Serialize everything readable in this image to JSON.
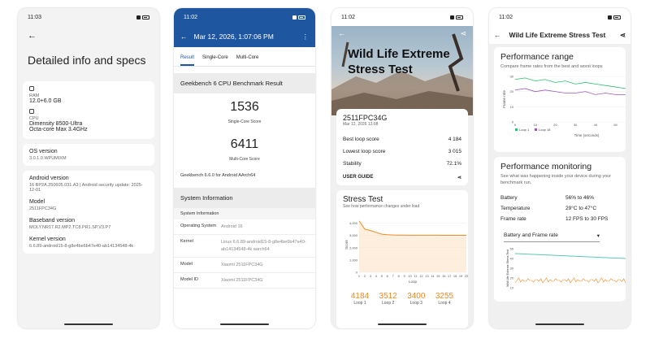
{
  "time": "11:02",
  "time_p1": "11:03",
  "p1": {
    "title": "Detailed info and specs",
    "ram_label": "RAM",
    "ram_value": "12.0+6.0 GB",
    "cpu_label": "CPU",
    "cpu_name": "Dimensity 8500-Ultra",
    "cpu_detail": "Octa-core Max 3.4GHz",
    "os_label": "OS version",
    "os_value": "3.0.1.0.WPUMIXM",
    "android_label": "Android version",
    "android_value": "16 BP2A.250605.031.A3 | Android security update: 2025-12-01",
    "model_label": "Model",
    "model_value": "2511FPC34G",
    "baseband_label": "Baseband version",
    "baseband_value": "MOLY.NR17.R2.MP2.TC8.PR1.SP.V3.P7",
    "kernel_label": "Kernel version",
    "kernel_value": "6.6.89-android15-8-g8e4be6b47e40-ab14134548-4k"
  },
  "p2": {
    "date": "Mar 12, 2026, 1:07:06 PM",
    "tabs": [
      "Result",
      "Single-Core",
      "Multi-Core"
    ],
    "section1": "Geekbench 6 CPU Benchmark Result",
    "single_score": "1536",
    "single_label": "Single-Core Score",
    "multi_score": "6411",
    "multi_label": "Multi-Core Score",
    "footer": "Geekbench 6.6.0 for Android AArch64",
    "section2": "System Information",
    "sub_header": "System Information",
    "rows": [
      {
        "k": "Operating System",
        "v": "Android 16"
      },
      {
        "k": "Kernel",
        "v": "Linux 6.6.89-android15-8-g8e4be6b47e40-ab14134548-4k aarch64"
      },
      {
        "k": "Model",
        "v": "Xiaomi 2511FPC34G"
      },
      {
        "k": "Model ID",
        "v": "Xiaomi 2511FPC34G"
      }
    ]
  },
  "p3": {
    "hero_title": "Wild Life Extreme Stress Test",
    "device": "2511FPC34G",
    "date": "Mar 12, 2026 12:08",
    "best_label": "Best loop score",
    "best_value": "4 184",
    "lowest_label": "Lowest loop score",
    "lowest_value": "3 015",
    "stability_label": "Stability",
    "stability_value": "72.1%",
    "user_guide": "USER GUIDE",
    "stress_title": "Stress Test",
    "stress_sub": "See how performance changes under load",
    "y_label": "Score",
    "x_label": "Loop",
    "y_ticks": [
      "4,000",
      "3,000",
      "2,000",
      "1,000",
      "0"
    ],
    "x_ticks": [
      "1",
      "2",
      "3",
      "4",
      "5",
      "6",
      "7",
      "8",
      "9",
      "10",
      "11",
      "12",
      "13",
      "14",
      "15",
      "16",
      "17",
      "18",
      "19",
      "20"
    ],
    "loops": [
      {
        "n": "4184",
        "d": "Loop 1"
      },
      {
        "n": "3512",
        "d": "Loop 2"
      },
      {
        "n": "3400",
        "d": "Loop 3"
      },
      {
        "n": "3255",
        "d": "Loop 4"
      }
    ]
  },
  "p4": {
    "title": "Wild Life Extreme Stress Test",
    "perf_range": "Performance range",
    "perf_range_sub": "Compare frame rates from the best and worst loops",
    "y_label": "Frame rate",
    "y_ticks": [
      "30",
      "20",
      "10",
      "0"
    ],
    "x_ticks": [
      "0",
      "10",
      "20",
      "30",
      "40",
      "50"
    ],
    "x_label": "Time (seconds)",
    "legend1": "Loop 1",
    "legend2": "Loop 18",
    "monitor_title": "Performance monitoring",
    "monitor_sub": "See what was happening inside your device during your benchmark run.",
    "rows": [
      {
        "k": "Battery",
        "v": "56% to 46%"
      },
      {
        "k": "Temperature",
        "v": "29°C to 47°C"
      },
      {
        "k": "Frame rate",
        "v": "12 FPS to 30 FPS"
      }
    ],
    "dropdown": "Battery and Frame rate",
    "chart2_label": "Wild Life Extreme Stress Test",
    "c2_ticks": [
      "50",
      "40",
      "30",
      "20",
      "10"
    ]
  },
  "colors": {
    "accent_blue": "#1e56a0",
    "orange": "#f08a24",
    "green": "#2fbf71",
    "purple": "#9b59b6",
    "teal": "#5cc8b8"
  },
  "chart_data": [
    {
      "type": "line",
      "title": "Stress Test",
      "xlabel": "Loop",
      "ylabel": "Score",
      "ylim": [
        0,
        4500
      ],
      "x": [
        1,
        2,
        3,
        4,
        5,
        6,
        7,
        8,
        9,
        10,
        11,
        12,
        13,
        14,
        15,
        16,
        17,
        18,
        19,
        20
      ],
      "series": [
        {
          "values": [
            4184,
            3512,
            3400,
            3255,
            3100,
            3060,
            3040,
            3030,
            3025,
            3020,
            3020,
            3018,
            3017,
            3016,
            3016,
            3015,
            3015,
            3015,
            3015,
            3015
          ]
        }
      ]
    },
    {
      "type": "line",
      "title": "Performance range",
      "xlabel": "Time (seconds)",
      "ylabel": "Frame rate",
      "ylim": [
        0,
        30
      ],
      "series": [
        {
          "name": "Loop 1",
          "values": [
            28,
            29,
            27,
            28,
            26,
            27,
            25,
            26,
            25,
            24,
            23,
            22
          ]
        },
        {
          "name": "Loop 18",
          "values": [
            21,
            22,
            20,
            21,
            20,
            19,
            19,
            20,
            18,
            19,
            18,
            18
          ]
        }
      ]
    }
  ]
}
